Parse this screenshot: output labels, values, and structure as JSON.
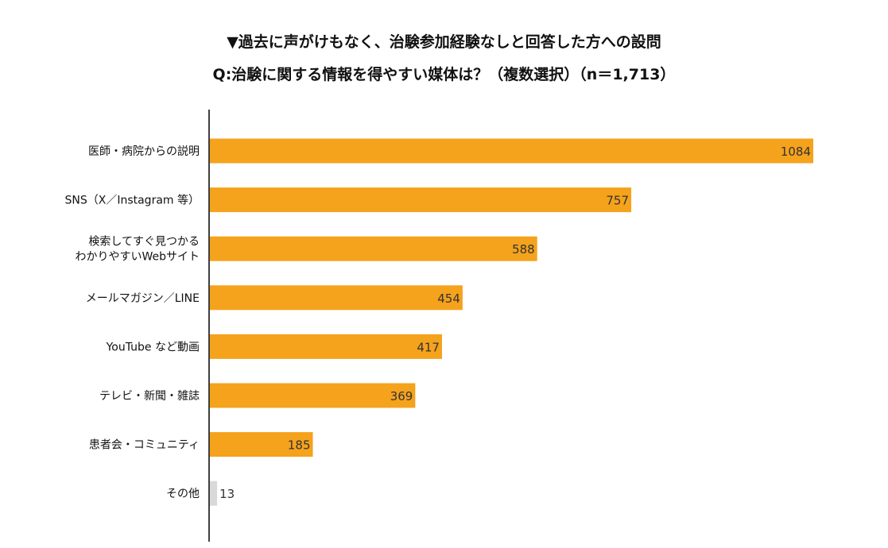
{
  "chart_data": {
    "type": "bar",
    "orientation": "horizontal",
    "title": "▼過去に声がけもなく、治験参加経験なしと回答した方への設問",
    "subtitle": "Q:治験に関する情報を得やすい媒体は？（複数選択）（n＝1,713）",
    "categories": [
      [
        "医師・病院からの説明"
      ],
      [
        "SNS（X／Instagram 等）"
      ],
      [
        "検索してすぐ見つかる",
        "わかりやすいWebサイト"
      ],
      [
        "メールマガジン／LINE"
      ],
      [
        "YouTube など動画"
      ],
      [
        "テレビ・新聞・雑誌"
      ],
      [
        "患者会・コミュニティ"
      ],
      [
        "その他"
      ]
    ],
    "values": [
      1084,
      757,
      588,
      454,
      417,
      369,
      185,
      13
    ],
    "data_labels": [
      "1084",
      "757",
      "588",
      "454",
      "417",
      "369",
      "185",
      "13"
    ],
    "colors": [
      "#F5A21C",
      "#F5A21C",
      "#F5A21C",
      "#F5A21C",
      "#F5A21C",
      "#F5A21C",
      "#F5A21C",
      "#D9D9D9"
    ],
    "xlim": [
      0,
      1100
    ],
    "grid": false,
    "legend": "none"
  }
}
